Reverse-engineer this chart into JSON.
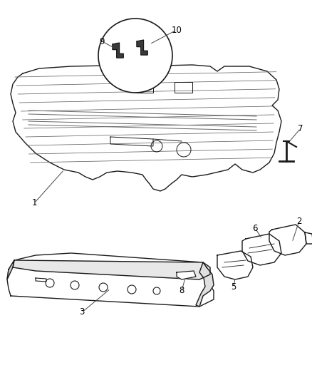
{
  "bg_color": "#ffffff",
  "line_color": "#1a1a1a",
  "label_color": "#000000",
  "label_fontsize": 8.5,
  "leader_line_color": "#444444",
  "fig_w": 4.39,
  "fig_h": 5.33,
  "dpi": 100
}
